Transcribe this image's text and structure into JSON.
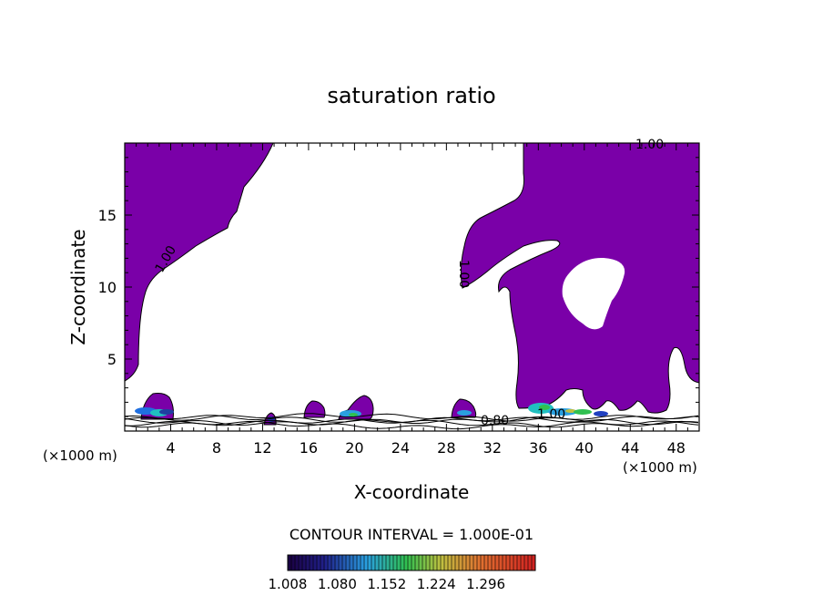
{
  "chart_data": {
    "type": "heatmap",
    "title": "saturation ratio",
    "xlabel": "X-coordinate",
    "ylabel": "Z-coordinate",
    "x_unit": "(×1000 m)",
    "z_unit": "(×1000 m)",
    "xlim": [
      0,
      50
    ],
    "ylim": [
      0,
      20
    ],
    "x_ticks": [
      "4",
      "8",
      "12",
      "16",
      "20",
      "24",
      "28",
      "32",
      "36",
      "40",
      "44",
      "48"
    ],
    "y_ticks": [
      "5",
      "10",
      "15"
    ],
    "contour_labels": [
      "1.00",
      "1.00",
      "1.00",
      "1.00",
      "0.80"
    ],
    "contour_interval_text": "CONTOUR INTERVAL = 1.000E-01",
    "colorbar_ticks": [
      "1.008",
      "1.080",
      "1.152",
      "1.224",
      "1.296"
    ],
    "fill_color": "#7a00a8",
    "grid": false
  }
}
